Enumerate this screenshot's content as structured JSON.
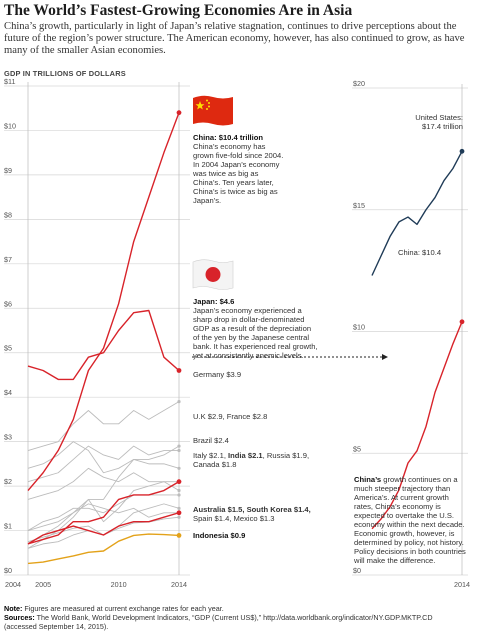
{
  "title": "The World’s Fastest-Growing Economies Are in Asia",
  "subtitle": "China’s growth, particularly in light of Japan’s relative stagnation, continues to drive perceptions about the future of the region’s power structure. The American economy, however, has also continued to grow, as have many of the smaller Asian economies.",
  "units_label": "GDP IN TRILLIONS OF DOLLARS",
  "annotations": {
    "china_head": "China: $10.4 trillion",
    "china_body": "China’s economy has grown five-fold since 2004. In 2004 Japan’s economy was twice as big as China’s. Ten years later, China’s is twice as big as Japan’s.",
    "japan_head": "Japan: $4.6",
    "japan_body": "Japan’s economy experienced a sharp drop in dollar-denominated GDP as a result of the depreciation of the yen by the Japanese central bank. It has experienced real growth, yet at consistently anemic levels.",
    "right_body_strong": "China’s",
    "right_body": " growth continues on a much steeper trajectory than America’s. At current growth rates, China’s economy is expected to overtake the U.S. economy within the next decade. Economic growth, however, is determined by policy, not history. Policy decisions in both countries will make the difference.",
    "us_label_1": "United States:",
    "us_label_2": "$17.4 trillion",
    "china_right_label": "China: $10.4"
  },
  "series_labels": {
    "germany": "Germany $3.9",
    "uk_france": "U.K $2.9, France $2.8",
    "brazil": "Brazil $2.4",
    "italy_group_a": "Italy $2.1, ",
    "italy_group_b": "India $2.1",
    "italy_group_c": ", Russia $1.9,",
    "italy_group_d": "Canada $1.8",
    "aus_group_a": "Australia $1.5, South Korea $1.4,",
    "aus_group_b": "Spain $1.4, Mexico $1.3",
    "indonesia": "Indonesia $0.9"
  },
  "notes": {
    "note_label": "Note:",
    "note_text": " Figures are measured at current exchange rates for each year.",
    "sources_label": "Sources:",
    "sources_text": " The World Bank, World Development Indicators, “GDP (Current US$),” http://data.worldbank.org/indicator/NY.GDP.MKTP.CD",
    "sources_text_2": "(accessed September 14, 2015)."
  },
  "colors": {
    "red": "#d8232a",
    "navy": "#1f3b57",
    "gold": "#e3a21a",
    "gray": "#bcbcbc",
    "grid": "#d6d6d6"
  },
  "chart_data": [
    {
      "type": "line",
      "title": "",
      "ylabel": "GDP IN TRILLIONS OF DOLLARS",
      "x": [
        2004,
        2005,
        2006,
        2007,
        2008,
        2009,
        2010,
        2011,
        2012,
        2013,
        2014
      ],
      "x_ticks": [
        "2004",
        "2005",
        "2010",
        "2014"
      ],
      "ylim": [
        0,
        11
      ],
      "y_ticks": [
        "$0",
        "$1",
        "$2",
        "$3",
        "$4",
        "$5",
        "$6",
        "$7",
        "$8",
        "$9",
        "$10",
        "$11"
      ],
      "series": [
        {
          "name": "China",
          "highlight": "red",
          "values": [
            1.9,
            2.3,
            2.8,
            3.5,
            4.6,
            5.1,
            6.1,
            7.5,
            8.5,
            9.5,
            10.4
          ]
        },
        {
          "name": "Japan",
          "highlight": "red",
          "values": [
            4.7,
            4.6,
            4.4,
            4.4,
            4.9,
            5.0,
            5.5,
            5.9,
            5.95,
            4.9,
            4.6
          ]
        },
        {
          "name": "Germany",
          "values": [
            2.8,
            2.9,
            3.0,
            3.4,
            3.7,
            3.4,
            3.4,
            3.7,
            3.5,
            3.7,
            3.9
          ]
        },
        {
          "name": "U.K",
          "values": [
            2.4,
            2.5,
            2.7,
            3.0,
            2.8,
            2.3,
            2.4,
            2.6,
            2.6,
            2.7,
            2.9
          ]
        },
        {
          "name": "France",
          "values": [
            2.1,
            2.2,
            2.3,
            2.6,
            2.9,
            2.7,
            2.6,
            2.9,
            2.7,
            2.8,
            2.8
          ]
        },
        {
          "name": "Brazil",
          "values": [
            0.7,
            0.9,
            1.1,
            1.4,
            1.7,
            1.7,
            2.2,
            2.6,
            2.5,
            2.5,
            2.4
          ]
        },
        {
          "name": "Italy",
          "values": [
            1.7,
            1.8,
            1.9,
            2.1,
            2.4,
            2.2,
            2.1,
            2.3,
            2.1,
            2.1,
            2.1
          ]
        },
        {
          "name": "India",
          "highlight": "red",
          "values": [
            0.7,
            0.8,
            0.9,
            1.2,
            1.2,
            1.3,
            1.7,
            1.8,
            1.8,
            1.9,
            2.1
          ]
        },
        {
          "name": "Russia",
          "values": [
            0.6,
            0.8,
            1.0,
            1.3,
            1.7,
            1.2,
            1.5,
            1.9,
            2.0,
            2.1,
            1.9
          ]
        },
        {
          "name": "Canada",
          "values": [
            1.0,
            1.2,
            1.3,
            1.5,
            1.5,
            1.4,
            1.6,
            1.8,
            1.8,
            1.8,
            1.8
          ]
        },
        {
          "name": "Australia",
          "values": [
            0.6,
            0.7,
            0.75,
            0.9,
            1.0,
            0.9,
            1.1,
            1.4,
            1.5,
            1.6,
            1.5
          ]
        },
        {
          "name": "South Korea",
          "highlight": "red",
          "values": [
            0.7,
            0.9,
            1.0,
            1.1,
            1.0,
            0.9,
            1.1,
            1.2,
            1.2,
            1.3,
            1.4
          ]
        },
        {
          "name": "Spain",
          "values": [
            1.0,
            1.1,
            1.2,
            1.4,
            1.6,
            1.5,
            1.4,
            1.5,
            1.3,
            1.4,
            1.4
          ]
        },
        {
          "name": "Mexico",
          "values": [
            0.75,
            0.85,
            0.95,
            1.05,
            1.1,
            0.9,
            1.05,
            1.17,
            1.19,
            1.26,
            1.3
          ]
        },
        {
          "name": "Indonesia",
          "highlight": "gold",
          "values": [
            0.26,
            0.29,
            0.36,
            0.43,
            0.51,
            0.54,
            0.76,
            0.89,
            0.92,
            0.91,
            0.89
          ]
        }
      ]
    },
    {
      "type": "line",
      "title": "",
      "x": [
        2004,
        2005,
        2006,
        2007,
        2008,
        2009,
        2010,
        2011,
        2012,
        2013,
        2014
      ],
      "x_ticks": [
        "2014"
      ],
      "ylim": [
        0,
        20
      ],
      "y_ticks": [
        "$0",
        "$5",
        "$10",
        "$15",
        "$20"
      ],
      "series": [
        {
          "name": "United States",
          "values": [
            12.3,
            13.1,
            13.9,
            14.5,
            14.7,
            14.4,
            15.0,
            15.5,
            16.2,
            16.7,
            17.4
          ]
        },
        {
          "name": "China",
          "values": [
            1.9,
            2.3,
            2.8,
            3.5,
            4.6,
            5.1,
            6.1,
            7.5,
            8.5,
            9.5,
            10.4
          ]
        }
      ]
    }
  ]
}
